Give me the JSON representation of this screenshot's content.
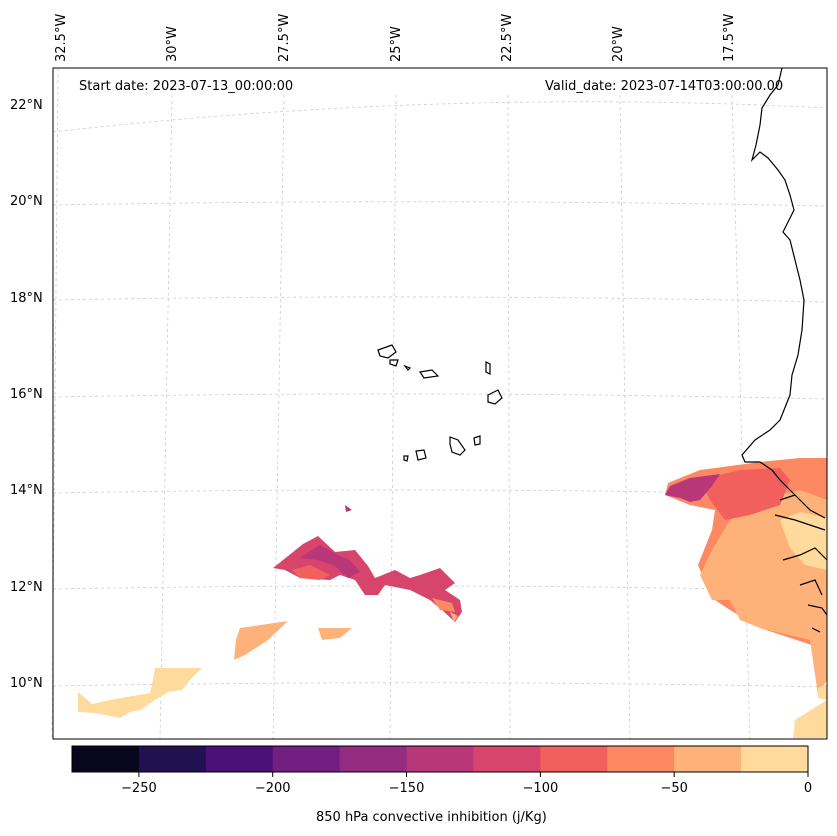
{
  "header": {
    "start_date": "Start date: 2023-07-13_00:00:00",
    "valid_date": "Valid_date: 2023-07-14T03:00:00.00"
  },
  "axes": {
    "lon_labels": [
      "32.5°W",
      "30°W",
      "27.5°W",
      "25°W",
      "22.5°W",
      "20°W",
      "17.5°W"
    ],
    "lat_labels": [
      "22°N",
      "20°N",
      "18°N",
      "16°N",
      "14°N",
      "12°N",
      "10°N"
    ]
  },
  "colorbar": {
    "title": "850 hPa convective inhibition (j/Kg)",
    "tick_labels": [
      "−250",
      "−200",
      "−150",
      "−100",
      "−50",
      "0"
    ],
    "colors": [
      "#07061c",
      "#221150",
      "#4c1179",
      "#721f81",
      "#932b80",
      "#b73779",
      "#d8456c",
      "#f1605d",
      "#fc8961",
      "#feb179",
      "#feda9c"
    ]
  },
  "chart_data": {
    "type": "heatmap",
    "title": "850 hPa convective inhibition (j/Kg)",
    "variable": "850 hPa convective inhibition",
    "units": "j/Kg",
    "color_levels": [
      -275,
      -250,
      -225,
      -200,
      -175,
      -150,
      -125,
      -100,
      -75,
      -50,
      -25,
      0
    ],
    "colorbar_ticks": [
      -250,
      -200,
      -150,
      -100,
      -50,
      0
    ],
    "lon_ticks": [
      -32.5,
      -30,
      -27.5,
      -25,
      -22.5,
      -20,
      -17.5
    ],
    "lat_ticks": [
      22,
      20,
      18,
      16,
      14,
      12,
      10
    ]
  }
}
